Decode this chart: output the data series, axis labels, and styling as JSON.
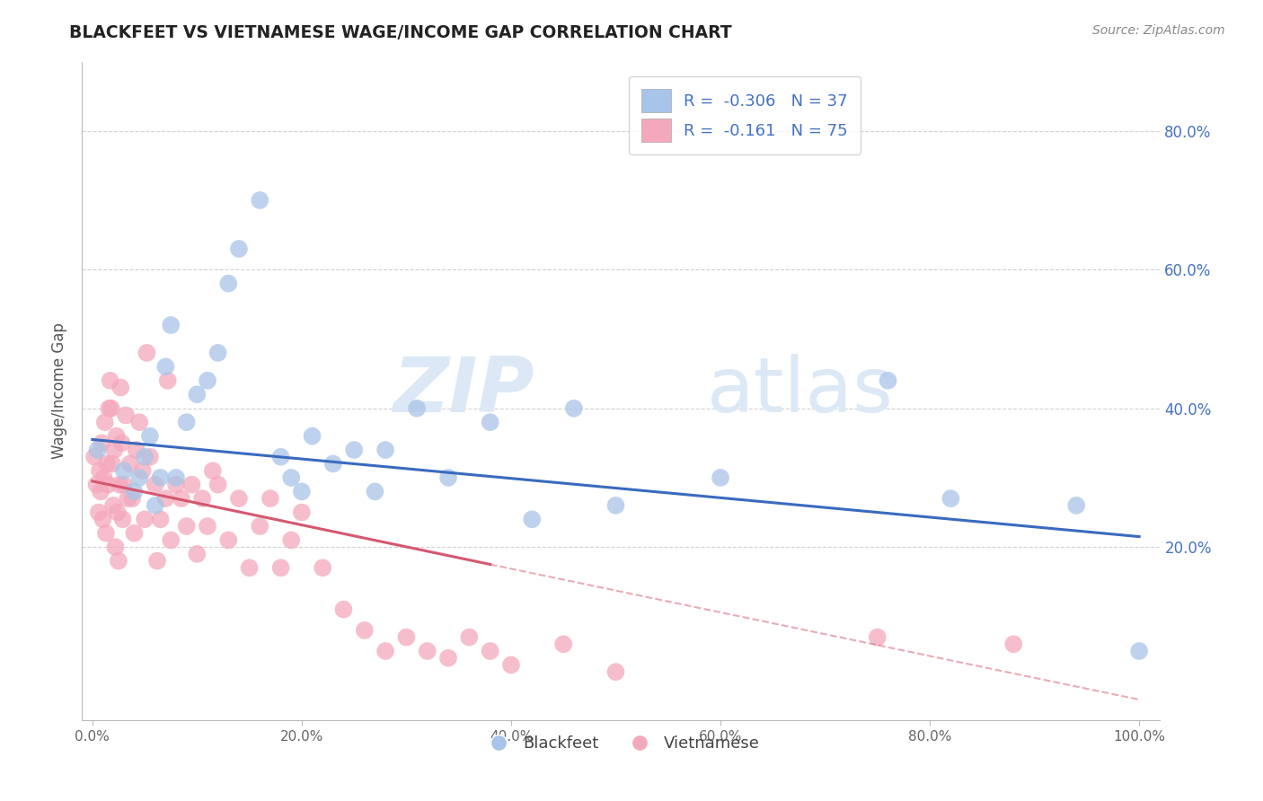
{
  "title": "BLACKFEET VS VIETNAMESE WAGE/INCOME GAP CORRELATION CHART",
  "source_text": "Source: ZipAtlas.com",
  "ylabel": "Wage/Income Gap",
  "xlim": [
    -0.01,
    1.02
  ],
  "ylim": [
    -0.05,
    0.9
  ],
  "xticks": [
    0.0,
    0.2,
    0.4,
    0.6,
    0.8,
    1.0
  ],
  "xtick_labels": [
    "0.0%",
    "20.0%",
    "40.0%",
    "60.0%",
    "80.0%",
    "100.0%"
  ],
  "right_yticks": [
    0.2,
    0.4,
    0.6,
    0.8
  ],
  "right_ytick_labels": [
    "20.0%",
    "40.0%",
    "60.0%",
    "80.0%"
  ],
  "blackfeet_color": "#a8c4e8",
  "vietnamese_color": "#f4a8bc",
  "blackfeet_line_color": "#3a6abf",
  "vietnamese_line_color": "#d45870",
  "legend_R_blackfeet": "-0.306",
  "legend_N_blackfeet": "37",
  "legend_R_vietnamese": "-0.161",
  "legend_N_vietnamese": "75",
  "legend_text_color": "#4472c4",
  "watermark_zip": "ZIP",
  "watermark_atlas": "atlas",
  "watermark_color": "#dce8f5",
  "background_color": "#ffffff",
  "grid_color": "#cccccc",
  "blackfeet_x": [
    0.005,
    0.03,
    0.04,
    0.045,
    0.05,
    0.055,
    0.06,
    0.065,
    0.07,
    0.075,
    0.08,
    0.09,
    0.1,
    0.11,
    0.12,
    0.13,
    0.14,
    0.16,
    0.18,
    0.19,
    0.2,
    0.21,
    0.23,
    0.25,
    0.27,
    0.28,
    0.31,
    0.34,
    0.38,
    0.42,
    0.46,
    0.5,
    0.6,
    0.76,
    0.82,
    0.94,
    1.0
  ],
  "blackfeet_y": [
    0.34,
    0.31,
    0.28,
    0.3,
    0.33,
    0.36,
    0.26,
    0.3,
    0.46,
    0.52,
    0.3,
    0.38,
    0.42,
    0.44,
    0.48,
    0.58,
    0.63,
    0.7,
    0.33,
    0.3,
    0.28,
    0.36,
    0.32,
    0.34,
    0.28,
    0.34,
    0.4,
    0.3,
    0.38,
    0.24,
    0.4,
    0.26,
    0.3,
    0.44,
    0.27,
    0.26,
    0.05
  ],
  "vietnamese_x": [
    0.002,
    0.004,
    0.006,
    0.007,
    0.008,
    0.009,
    0.01,
    0.011,
    0.012,
    0.013,
    0.014,
    0.015,
    0.016,
    0.017,
    0.018,
    0.019,
    0.02,
    0.021,
    0.022,
    0.023,
    0.024,
    0.025,
    0.026,
    0.027,
    0.028,
    0.029,
    0.03,
    0.032,
    0.034,
    0.036,
    0.038,
    0.04,
    0.042,
    0.045,
    0.048,
    0.05,
    0.052,
    0.055,
    0.06,
    0.062,
    0.065,
    0.07,
    0.072,
    0.075,
    0.08,
    0.085,
    0.09,
    0.095,
    0.1,
    0.105,
    0.11,
    0.115,
    0.12,
    0.13,
    0.14,
    0.15,
    0.16,
    0.17,
    0.18,
    0.19,
    0.2,
    0.22,
    0.24,
    0.26,
    0.28,
    0.3,
    0.32,
    0.34,
    0.36,
    0.38,
    0.4,
    0.45,
    0.5,
    0.75,
    0.88
  ],
  "vietnamese_y": [
    0.33,
    0.29,
    0.25,
    0.31,
    0.28,
    0.35,
    0.24,
    0.3,
    0.38,
    0.22,
    0.32,
    0.29,
    0.4,
    0.44,
    0.4,
    0.32,
    0.26,
    0.34,
    0.2,
    0.36,
    0.25,
    0.18,
    0.29,
    0.43,
    0.35,
    0.24,
    0.29,
    0.39,
    0.27,
    0.32,
    0.27,
    0.22,
    0.34,
    0.38,
    0.31,
    0.24,
    0.48,
    0.33,
    0.29,
    0.18,
    0.24,
    0.27,
    0.44,
    0.21,
    0.29,
    0.27,
    0.23,
    0.29,
    0.19,
    0.27,
    0.23,
    0.31,
    0.29,
    0.21,
    0.27,
    0.17,
    0.23,
    0.27,
    0.17,
    0.21,
    0.25,
    0.17,
    0.11,
    0.08,
    0.05,
    0.07,
    0.05,
    0.04,
    0.07,
    0.05,
    0.03,
    0.06,
    0.02,
    0.07,
    0.06
  ],
  "bf_line_x_start": 0.0,
  "bf_line_x_end": 1.0,
  "bf_line_y_start": 0.355,
  "bf_line_y_end": 0.215,
  "vn_line_x_solid_start": 0.0,
  "vn_line_x_solid_end": 0.38,
  "vn_line_y_solid_start": 0.295,
  "vn_line_y_solid_end": 0.175,
  "vn_line_x_dash_start": 0.38,
  "vn_line_x_dash_end": 1.0,
  "vn_line_y_dash_start": 0.175,
  "vn_line_y_dash_end": -0.02
}
